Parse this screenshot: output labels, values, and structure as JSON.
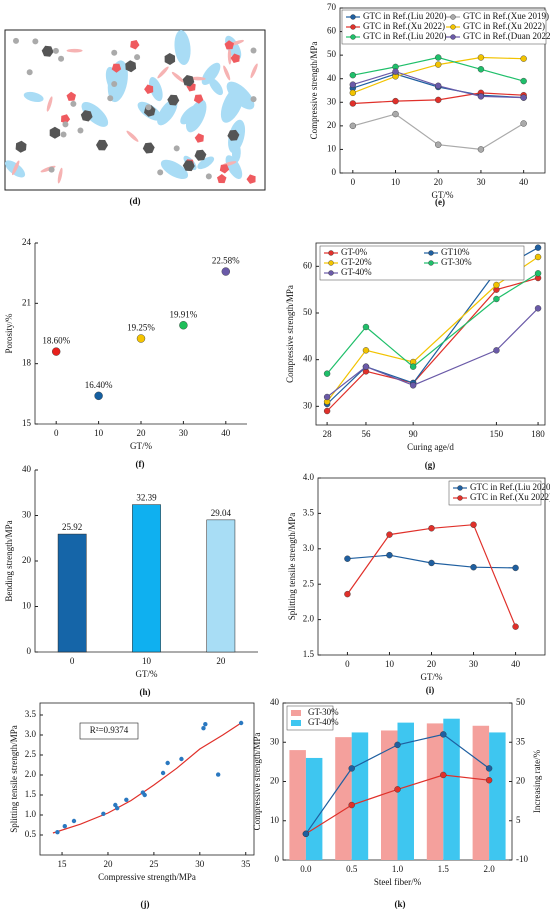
{
  "chart_data": [
    {
      "type": "illustration",
      "panel": "(d)"
    },
    {
      "type": "line",
      "panel": "(e)",
      "xlabel": "GT/%",
      "ylabel": "Compressive strength/MPa",
      "x": [
        0,
        10,
        20,
        30,
        40
      ],
      "xlim": [
        -3,
        45
      ],
      "xticks": [
        0,
        10,
        20,
        30,
        40
      ],
      "ylim": [
        0,
        70
      ],
      "yticks": [
        0,
        10,
        20,
        30,
        40,
        50,
        60,
        70
      ],
      "legend": "top",
      "series": [
        {
          "name": "GTC in Ref.(Liu 2020)",
          "color": "#1f5fa0",
          "values": [
            36,
            42,
            36.5,
            33,
            32
          ]
        },
        {
          "name": "GTC in Ref.(Xue 2019)",
          "color": "#aaaaaa",
          "values": [
            20,
            25,
            12,
            10,
            21
          ]
        },
        {
          "name": "GTC in Ref.(Xu 2022)",
          "color": "#e0302a",
          "values": [
            29.5,
            30.5,
            31,
            34,
            33
          ]
        },
        {
          "name": "GTC in Ref.(Xu 2022)",
          "color": "#f2c300",
          "values": [
            34,
            41,
            46,
            49,
            48.5
          ]
        },
        {
          "name": "GTC in Ref.(Liu 2020)",
          "color": "#1fbf6a",
          "values": [
            41.5,
            45,
            49,
            44,
            39
          ]
        },
        {
          "name": "GTC in Ref.(Duan 2022)",
          "color": "#6a5aa8",
          "values": [
            37.5,
            43,
            37,
            32.5,
            32
          ]
        }
      ]
    },
    {
      "type": "scatter",
      "panel": "(f)",
      "xlabel": "GT/%",
      "ylabel": "Porosity/%",
      "x": [
        0,
        10,
        20,
        30,
        40
      ],
      "values": [
        18.6,
        16.4,
        19.25,
        19.91,
        22.58
      ],
      "value_labels": [
        "18.60%",
        "16.40%",
        "19.25%",
        "19.91%",
        "22.58%"
      ],
      "colors": [
        "#e8201c",
        "#155fa0",
        "#f5c400",
        "#1fbf5a",
        "#6a5aa8"
      ],
      "xlim": [
        -5,
        45
      ],
      "xticks": [
        0,
        10,
        20,
        30,
        40
      ],
      "ylim": [
        15,
        24
      ],
      "yticks": [
        15,
        18,
        21,
        24
      ]
    },
    {
      "type": "line",
      "panel": "(g)",
      "xlabel": "Curing age/d",
      "ylabel": "Compressive strength/MPa",
      "x": [
        28,
        56,
        90,
        150,
        180
      ],
      "xlim": [
        20,
        185
      ],
      "xticks": [
        28,
        56,
        90,
        150,
        180
      ],
      "ylim": [
        26,
        65
      ],
      "yticks": [
        30,
        40,
        50,
        60
      ],
      "legend": "upper left",
      "series": [
        {
          "name": "GT-0%",
          "color": "#e0302a",
          "values": [
            29,
            37.5,
            35,
            55,
            57.5
          ]
        },
        {
          "name": "GT10%",
          "color": "#1f5fa0",
          "values": [
            30.5,
            38.5,
            35,
            59,
            64
          ]
        },
        {
          "name": "GT-20%",
          "color": "#f2c300",
          "values": [
            31,
            42,
            39.5,
            56,
            62
          ]
        },
        {
          "name": "GT-30%",
          "color": "#1fbf6a",
          "values": [
            37,
            47,
            38.5,
            53,
            58.5
          ]
        },
        {
          "name": "GT-40%",
          "color": "#6a5aa8",
          "values": [
            32,
            38.5,
            34.5,
            42,
            51
          ]
        }
      ]
    },
    {
      "type": "bar",
      "panel": "(h)",
      "xlabel": "GT/%",
      "ylabel": "Bending strength/MPa",
      "categories": [
        "0",
        "10",
        "20"
      ],
      "values": [
        25.92,
        32.39,
        29.04
      ],
      "colors": [
        "#1565a8",
        "#0fb0f0",
        "#a8ddf5"
      ],
      "ylim": [
        0,
        40
      ],
      "yticks": [
        0,
        10,
        20,
        30,
        40
      ]
    },
    {
      "type": "line",
      "panel": "(i)",
      "xlabel": "GT/%",
      "ylabel": "Splitting tensile strength/MPa",
      "x": [
        0,
        10,
        20,
        30,
        40
      ],
      "xlim": [
        -7,
        47
      ],
      "xticks": [
        0,
        10,
        20,
        30,
        40
      ],
      "ylim": [
        1.5,
        4.0
      ],
      "yticks": [
        {
          "value": 1.5,
          "label": "1.5"
        },
        {
          "value": 2,
          "label": "2.0"
        },
        {
          "value": 2.5,
          "label": "2.5"
        },
        {
          "value": 3,
          "label": "3.0"
        },
        {
          "value": 3.5,
          "label": "3.5"
        },
        {
          "value": 4,
          "label": "4.0"
        }
      ],
      "legend": "upper right",
      "series": [
        {
          "name": "GTC in Ref.(Liu 2020)",
          "color": "#1f5fa0",
          "values": [
            2.86,
            2.91,
            2.8,
            2.74,
            2.73
          ]
        },
        {
          "name": "GTC in Ref.(Xu 2022)",
          "color": "#e0302a",
          "values": [
            2.36,
            3.2,
            3.29,
            3.34,
            1.9
          ]
        }
      ]
    },
    {
      "type": "scatter",
      "panel": "(j)",
      "xlabel": "Compressive strength/MPa",
      "ylabel": "Splitting tensile strength/MPa",
      "annotation": "R²=0.9374",
      "x": [
        14.5,
        15.3,
        16.3,
        19.5,
        20.8,
        21,
        22,
        23.8,
        24,
        26,
        26.5,
        28,
        30.4,
        30.6,
        32,
        34.5
      ],
      "values": [
        0.57,
        0.72,
        0.85,
        1.03,
        1.25,
        1.17,
        1.38,
        1.56,
        1.5,
        2.05,
        2.3,
        2.4,
        3.17,
        3.27,
        2.01,
        3.3
      ],
      "color": "#2a78c0",
      "fit": {
        "color": "#e0302a",
        "x": [
          14,
          17,
          20,
          22.5,
          25,
          27.5,
          30,
          32.5,
          34.5
        ],
        "values": [
          0.55,
          0.77,
          1.05,
          1.36,
          1.75,
          2.17,
          2.65,
          3.0,
          3.3
        ]
      },
      "xlim": [
        12.6,
        35.9
      ],
      "xticks": [
        15,
        20,
        25,
        30,
        35
      ],
      "ylim": [
        0,
        3.8
      ],
      "yticks": [
        {
          "value": 0.5,
          "label": "0.5"
        },
        {
          "value": 1,
          "label": "1.0"
        },
        {
          "value": 1.5,
          "label": "1.5"
        },
        {
          "value": 2,
          "label": "2.0"
        },
        {
          "value": 2.5,
          "label": "2.5"
        },
        {
          "value": 3,
          "label": "3.0"
        },
        {
          "value": 3.5,
          "label": "3.5"
        }
      ]
    },
    {
      "type": "bar_line",
      "panel": "(k)",
      "xlabel": "Steel fiber/%",
      "ylabel": "Compressive strength/MPa",
      "y2label": "Increasing rate/%",
      "categories": [
        "0.0",
        "0.5",
        "1.0",
        "1.5",
        "2.0"
      ],
      "legend": "upper left",
      "ylim": [
        0,
        40
      ],
      "yticks": [
        0,
        10,
        20,
        30,
        40
      ],
      "y2lim": [
        -10,
        50
      ],
      "y2ticks": [
        -10,
        5,
        20,
        35,
        50
      ],
      "series": [
        {
          "name": "GT-30%",
          "color": "#f4a09c",
          "values": [
            28,
            31.3,
            33,
            34.8,
            34.2
          ]
        },
        {
          "name": "GT-40%",
          "color": "#3ec6f0",
          "values": [
            26,
            32.5,
            35,
            36,
            32.5
          ]
        },
        {
          "color": "#e0302a",
          "axis": "y2",
          "values": [
            0,
            11,
            17,
            22.5,
            20.5
          ]
        },
        {
          "color": "#1f5fa0",
          "axis": "y2",
          "values": [
            0,
            25,
            34,
            38,
            25
          ]
        }
      ]
    }
  ]
}
